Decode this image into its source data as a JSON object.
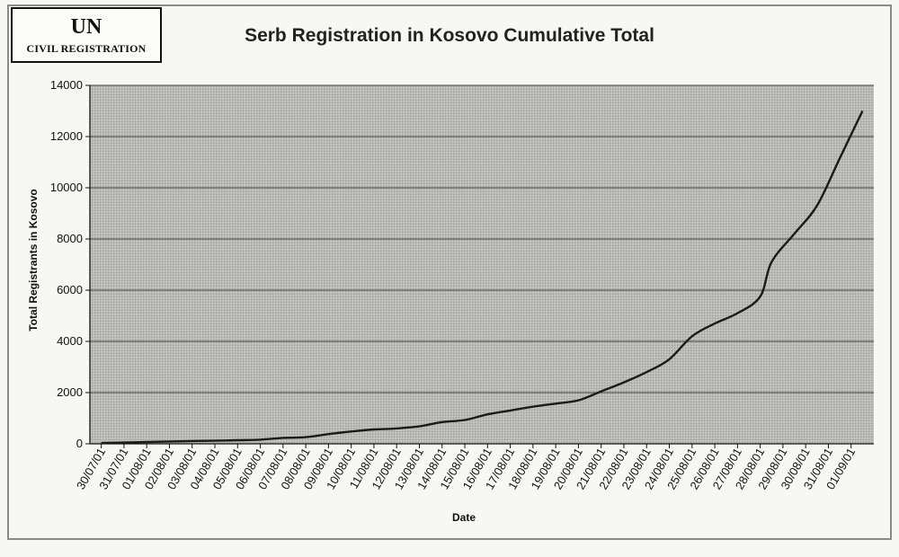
{
  "logo": {
    "main": "UN",
    "sub": "CIVIL REGISTRATION"
  },
  "chart_data": {
    "type": "line",
    "title": "Serb Registration in Kosovo Cumulative Total",
    "xlabel": "Date",
    "ylabel": "Total Registrants in Kosovo",
    "ylim": [
      0,
      14000
    ],
    "yticks": [
      0,
      2000,
      4000,
      6000,
      8000,
      10000,
      12000,
      14000
    ],
    "grid": true,
    "categories": [
      "30/07/01",
      "31/07/01",
      "01/08/01",
      "02/08/01",
      "03/08/01",
      "04/08/01",
      "05/08/01",
      "06/08/01",
      "07/08/01",
      "08/08/01",
      "09/08/01",
      "10/08/01",
      "11/08/01",
      "12/08/01",
      "13/08/01",
      "14/08/01",
      "15/08/01",
      "16/08/01",
      "17/08/01",
      "18/08/01",
      "19/08/01",
      "20/08/01",
      "21/08/01",
      "22/08/01",
      "23/08/01",
      "24/08/01",
      "25/08/01",
      "26/08/01",
      "27/08/01",
      "28/08/01",
      "29/08/01",
      "30/08/01",
      "31/08/01",
      "01/09/01"
    ],
    "series": [
      {
        "values": [
          30,
          50,
          70,
          90,
          110,
          120,
          140,
          160,
          230,
          260,
          380,
          480,
          560,
          600,
          680,
          850,
          930,
          1150,
          1300,
          1450,
          1570,
          1700,
          2050,
          2400,
          2800,
          3300,
          4200,
          4700,
          5100,
          5750,
          7100,
          8200,
          9300,
          11150,
          13000
        ],
        "x": [
          0,
          1,
          2,
          3,
          4,
          5,
          6,
          7,
          8,
          9,
          10,
          11,
          12,
          13,
          14,
          15,
          16,
          17,
          18,
          19,
          20,
          21,
          22,
          23,
          24,
          25,
          26,
          27,
          28,
          29,
          29.5,
          30.5,
          31.5,
          32.5,
          33.5
        ]
      }
    ],
    "colors": {
      "plot_bg": "#b9b9b7",
      "grid": "#5c5c5c",
      "line": "#1a1a1a"
    }
  }
}
